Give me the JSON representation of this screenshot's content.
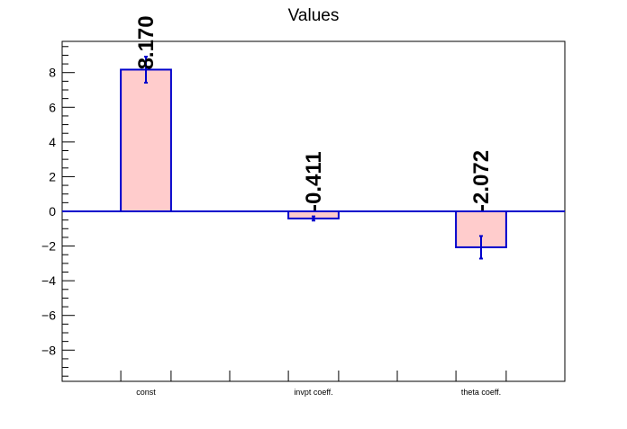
{
  "chart_data": {
    "type": "bar",
    "title": "Values",
    "xlabel": "",
    "ylabel": "",
    "categories": [
      "const",
      "invpt coeff.",
      "theta coeff."
    ],
    "values": [
      8.17,
      -0.411,
      -2.072
    ],
    "errors": [
      0.75,
      0.12,
      0.65
    ],
    "value_labels": [
      "8.170",
      "-0.411",
      "-2.072"
    ],
    "ylim": [
      -9.8,
      9.8
    ],
    "yticks": [
      -8,
      -6,
      -4,
      -2,
      0,
      2,
      4,
      6,
      8
    ],
    "grid": false,
    "legend": "none",
    "colors": {
      "bar_fill": "#ffcccc",
      "bar_edge": "#0000cc",
      "zero_line": "#0000cc",
      "error_bar": "#0000cc",
      "axis": "#000000",
      "text": "#000000"
    }
  }
}
